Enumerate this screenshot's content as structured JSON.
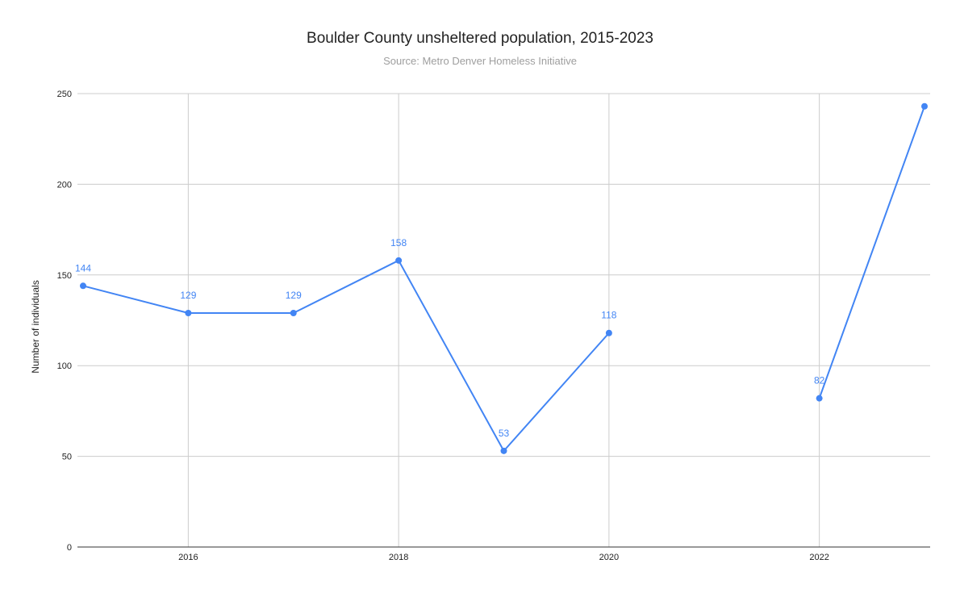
{
  "chart_data": {
    "type": "line",
    "title": "Boulder County unsheltered population, 2015-2023",
    "subtitle": "Source: Metro Denver Homeless Initiative",
    "xlabel": "",
    "ylabel": "Number of individuals",
    "xlim": [
      2015,
      2023
    ],
    "ylim": [
      0,
      250
    ],
    "x_ticks": [
      2016,
      2018,
      2020,
      2022
    ],
    "y_ticks": [
      0,
      50,
      100,
      150,
      200,
      250
    ],
    "grid": true,
    "series": [
      {
        "color": "#4285f4",
        "points": [
          {
            "x": 2015,
            "y": 144,
            "label": "144"
          },
          {
            "x": 2016,
            "y": 129,
            "label": "129"
          },
          {
            "x": 2017,
            "y": 129,
            "label": "129"
          },
          {
            "x": 2018,
            "y": 158,
            "label": "158"
          },
          {
            "x": 2019,
            "y": 53,
            "label": "53"
          },
          {
            "x": 2020,
            "y": 118,
            "label": "118"
          },
          {
            "x": 2022,
            "y": 82,
            "label": "82"
          },
          {
            "x": 2023,
            "y": 243,
            "label": ""
          }
        ],
        "segments": [
          [
            2015,
            2016,
            2017,
            2018,
            2019,
            2020
          ],
          [
            2022,
            2023
          ]
        ]
      }
    ]
  }
}
